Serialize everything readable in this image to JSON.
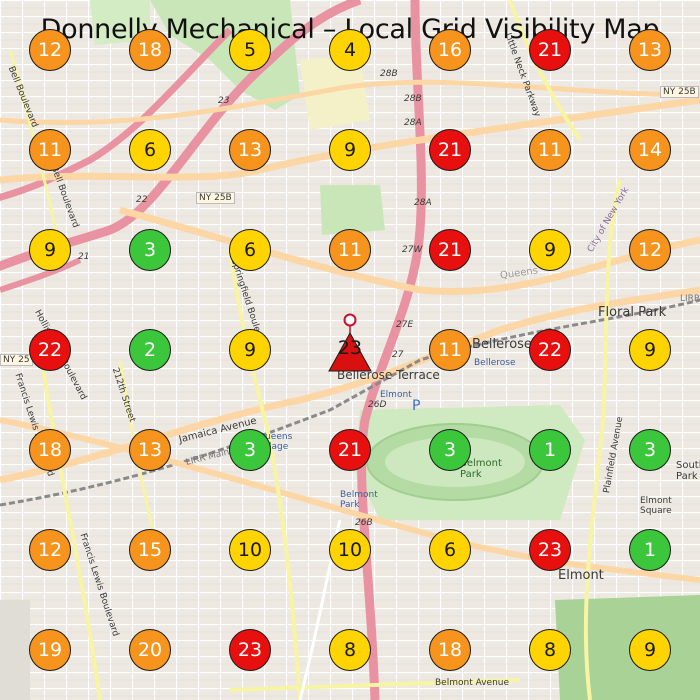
{
  "title": "Donnelly Mechanical – Local Grid Visibility Map",
  "colors": {
    "red": "#e80f0f",
    "orange": "#f7941d",
    "yellow": "#ffd400",
    "green": "#3cc63c"
  },
  "grid": [
    [
      "12",
      "18",
      "5",
      "4",
      "16",
      "21",
      "13"
    ],
    [
      "11",
      "6",
      "13",
      "9",
      "21",
      "11",
      "14"
    ],
    [
      "9",
      "3",
      "6",
      "11",
      "21",
      "9",
      "12"
    ],
    [
      "22",
      "2",
      "9",
      "23",
      "11",
      "22",
      "9"
    ],
    [
      "18",
      "13",
      "3",
      "21",
      "3",
      "1",
      "3"
    ],
    [
      "12",
      "15",
      "10",
      "10",
      "6",
      "23",
      "1"
    ],
    [
      "19",
      "20",
      "23",
      "8",
      "18",
      "8",
      "9"
    ]
  ],
  "grid_colors": [
    [
      "orange",
      "orange",
      "yellow",
      "yellow",
      "orange",
      "red",
      "orange"
    ],
    [
      "orange",
      "yellow",
      "orange",
      "yellow",
      "red",
      "orange",
      "orange"
    ],
    [
      "yellow",
      "green",
      "yellow",
      "orange",
      "red",
      "yellow",
      "orange"
    ],
    [
      "red",
      "green",
      "yellow",
      "red",
      "orange",
      "red",
      "yellow"
    ],
    [
      "orange",
      "orange",
      "green",
      "red",
      "green",
      "green",
      "green"
    ],
    [
      "orange",
      "orange",
      "yellow",
      "yellow",
      "yellow",
      "red",
      "green"
    ],
    [
      "orange",
      "orange",
      "red",
      "yellow",
      "orange",
      "yellow",
      "yellow"
    ]
  ],
  "target_icons": [
    "pin-icon",
    "triangle-icon"
  ],
  "map_labels": {
    "floral_park": "Floral Park",
    "floral_park_small": "Floral\nPark",
    "bellerose": "Bellerose",
    "bellerose_small": "Bellerose",
    "bellerose_terrace": "Bellerose Terrace",
    "elmont": "Elmont",
    "elmont_small": "Elmont",
    "belmont_park": "Belmont\nPark",
    "belmont_park_small": "Belmont\nPark",
    "queens": "Queens",
    "queens_village": "Queens\nVillage",
    "jamaica_avenue": "Jamaica Avenue",
    "lirr": "LIRR Main Line",
    "ny25b_a": "NY 25B",
    "ny25b_b": "NY 25B",
    "ny25_left": "NY 25",
    "springfield": "Springfield Boulevard",
    "hollis_court": "Hollis Court Boulevard",
    "bell_boulevard_1": "Bell Boulevard",
    "bell_boulevard_2": "Bell Boulevard",
    "francis_lewis_1": "Francis Lewis Boulevard",
    "francis_lewis_2": "Francis Lewis Boulevard",
    "little_neck": "Little Neck Parkway",
    "city_of_ny": "City of New York",
    "plainfield": "Plainfield Avenue",
    "belmont_ave": "Belmont Avenue",
    "s212": "212th Street",
    "south_floral": "South Fl\nPark",
    "elmont_sq": "Elmont\nSquare",
    "exit_28b": "28B",
    "exit_28b2": "28B",
    "exit_28a": "28A",
    "exit_28a2": "28A",
    "exit_27w": "27W",
    "exit_27e": "27E",
    "exit_27": "27",
    "exit_26d": "26D",
    "exit_26b": "26B",
    "exit_23": "23",
    "exit_22": "22",
    "exit_21": "21",
    "parking": "P",
    "lirr_right": "LIRR"
  }
}
